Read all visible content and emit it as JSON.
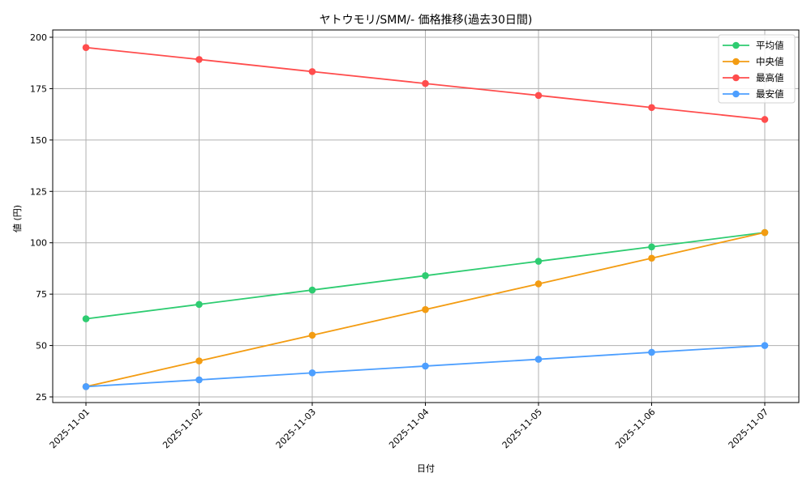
{
  "chart_data": {
    "type": "line",
    "title": "ヤトウモリ/SMM/- 価格推移(過去30日間)",
    "xlabel": "日付",
    "ylabel": "値 (円)",
    "categories": [
      "2025-11-01",
      "2025-11-02",
      "2025-11-03",
      "2025-11-04",
      "2025-11-05",
      "2025-11-06",
      "2025-11-07"
    ],
    "ylim": [
      22,
      204
    ],
    "yticks": [
      25,
      50,
      75,
      100,
      125,
      150,
      175,
      200
    ],
    "grid": true,
    "legend_position": "upper right",
    "series": [
      {
        "name": "平均値",
        "color": "#2ecc71",
        "values": [
          63,
          70,
          77,
          84,
          91,
          98,
          105
        ]
      },
      {
        "name": "中央値",
        "color": "#f39c12",
        "values": [
          30,
          42.5,
          55,
          67.5,
          80,
          92.5,
          105
        ]
      },
      {
        "name": "最高値",
        "color": "#ff4d4d",
        "values": [
          195,
          189.2,
          183.3,
          177.5,
          171.7,
          165.8,
          160
        ]
      },
      {
        "name": "最安値",
        "color": "#4d9fff",
        "values": [
          30,
          33.3,
          36.7,
          40,
          43.3,
          46.7,
          50
        ]
      }
    ]
  }
}
